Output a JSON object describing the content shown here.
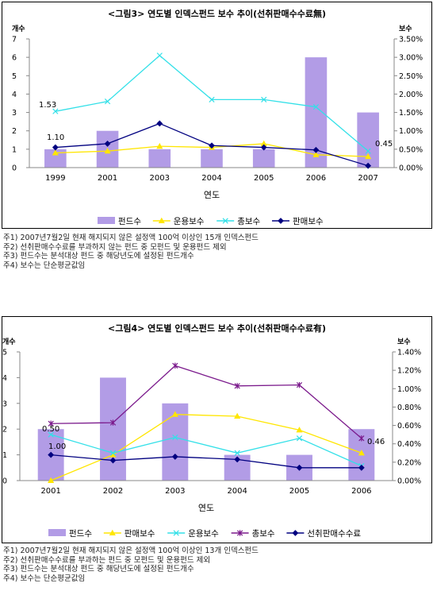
{
  "chart_data": [
    {
      "type": "bar",
      "title": "<그림3> 연도별 인덱스펀드 보수 추이(선취판매수수료無)",
      "xlabel": "연도",
      "ylabel_left": "개수",
      "ylabel_right": "보수",
      "categories": [
        "1999",
        "2001",
        "2003",
        "2004",
        "2005",
        "2006",
        "2007"
      ],
      "ylim_left": [
        0,
        7
      ],
      "yticks_left": [
        "0",
        "1",
        "2",
        "3",
        "4",
        "5",
        "6",
        "7"
      ],
      "ylim_right": [
        0,
        0.035
      ],
      "yticks_right": [
        "0.00%",
        "0.50%",
        "1.00%",
        "1.50%",
        "2.00%",
        "2.50%",
        "3.00%",
        "3.50%"
      ],
      "series": [
        {
          "name": "펀드수",
          "kind": "bar",
          "axis": "left",
          "color": "#b29ce6",
          "values": [
            1,
            2,
            1,
            1,
            1,
            6,
            3
          ]
        },
        {
          "name": "운용보수",
          "kind": "line",
          "axis": "right",
          "color": "#ffe600",
          "marker": "triangle",
          "values": [
            0.004,
            0.0045,
            0.0058,
            0.0055,
            0.0065,
            0.0035,
            0.003
          ]
        },
        {
          "name": "총보수",
          "kind": "line",
          "axis": "right",
          "color": "#33e0e8",
          "marker": "x",
          "values": [
            0.0153,
            0.018,
            0.0305,
            0.0185,
            0.0185,
            0.0165,
            0.0045
          ]
        },
        {
          "name": "판매보수",
          "kind": "line",
          "axis": "right",
          "color": "#000080",
          "marker": "diamond",
          "values": [
            0.0055,
            0.0065,
            0.012,
            0.006,
            0.0055,
            0.0048,
            0.0005
          ]
        }
      ],
      "annotations": [
        "1.53",
        "1.10",
        "0.45"
      ],
      "legend_position": "bottom",
      "grid": false
    },
    {
      "type": "bar",
      "title": "<그림4> 연도별 인덱스펀드 보수 추이(선취판매수수료有)",
      "xlabel": "연도",
      "ylabel_left": "개수",
      "ylabel_right": "보수",
      "categories": [
        "2001",
        "2002",
        "2003",
        "2004",
        "2005",
        "2006"
      ],
      "ylim_left": [
        0,
        5
      ],
      "yticks_left": [
        "0",
        "1",
        "2",
        "3",
        "4",
        "5"
      ],
      "ylim_right": [
        0,
        0.014
      ],
      "yticks_right": [
        "0.00%",
        "0.20%",
        "0.40%",
        "0.60%",
        "0.80%",
        "1.00%",
        "1.20%",
        "1.40%"
      ],
      "series": [
        {
          "name": "펀드수",
          "kind": "bar",
          "axis": "left",
          "color": "#b29ce6",
          "values": [
            2,
            4,
            3,
            1,
            1,
            2
          ]
        },
        {
          "name": "판매보수",
          "kind": "line",
          "axis": "right",
          "color": "#ffe600",
          "marker": "triangle",
          "values": [
            0.0,
            0.0028,
            0.0072,
            0.007,
            0.0055,
            0.003
          ]
        },
        {
          "name": "운용보수",
          "kind": "line",
          "axis": "right",
          "color": "#33e0e8",
          "marker": "x",
          "values": [
            0.005,
            0.003,
            0.0047,
            0.003,
            0.0046,
            0.0016
          ]
        },
        {
          "name": "총보수",
          "kind": "line",
          "axis": "right",
          "color": "#7b1a8c",
          "marker": "star",
          "values": [
            0.0062,
            0.0063,
            0.0125,
            0.0103,
            0.0104,
            0.0046
          ]
        },
        {
          "name": "선취판매수수료",
          "kind": "line",
          "axis": "right",
          "color": "#000080",
          "marker": "diamond",
          "values": [
            0.0028,
            0.0022,
            0.0026,
            0.0023,
            0.0014,
            0.0014
          ]
        }
      ],
      "annotations": [
        "0.50",
        "1.00",
        "0.46"
      ],
      "legend_position": "bottom",
      "grid": false
    }
  ],
  "notes1": [
    "주1) 2007년7월2일 현재 해지되지 않은 설정액 100억 이상인 15개 인덱스펀드",
    "주2) 선취판매수수료를 부과하지 않는 펀드 중 모펀드 및 운용펀드 제외",
    "주3) 펀드수는 분석대상 펀드 중 해당년도에 설정된 펀드개수",
    "주4) 보수는 단순평균값임"
  ],
  "notes2": [
    "주1) 2007년7월2일 현재 해지되지 않은 설정액 100억 이상인 13개 인덱스펀드",
    "주2) 선취판매수수료를 부과하는 펀드 중 모펀드 및 운용펀드 제외",
    "주3) 펀드수는 분석대상 펀드 중 해당년도에 설정된 펀드개수",
    "주4) 보수는 단순평균값임"
  ]
}
